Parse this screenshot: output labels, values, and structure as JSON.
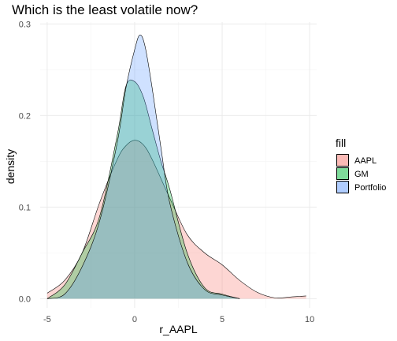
{
  "chart_data": {
    "type": "area",
    "title": "Which is the least volatile now?",
    "xlabel": "r_AAPL",
    "ylabel": "density",
    "xlim": [
      -5.4,
      10.4
    ],
    "ylim": [
      -0.01,
      0.302
    ],
    "x_ticks": [
      -5,
      0,
      5,
      10
    ],
    "y_ticks": [
      0.0,
      0.1,
      0.2,
      0.3
    ],
    "x_tick_labels": [
      "-5",
      "0",
      "5",
      "10"
    ],
    "y_tick_labels": [
      "0.0",
      "0.1",
      "0.2",
      "0.3"
    ],
    "grid": true,
    "legend": {
      "title": "fill",
      "position": "right"
    },
    "series": [
      {
        "name": "AAPL",
        "color": "#F8766D",
        "x": [
          -5.0,
          -4.0,
          -3.0,
          -2.0,
          -1.0,
          -0.5,
          0.0,
          0.5,
          1.0,
          2.0,
          3.0,
          4.0,
          5.0,
          6.0,
          7.0,
          8.0,
          9.0,
          9.8
        ],
        "y": [
          0.006,
          0.02,
          0.05,
          0.105,
          0.152,
          0.167,
          0.173,
          0.168,
          0.152,
          0.11,
          0.07,
          0.05,
          0.037,
          0.02,
          0.007,
          0.001,
          0.002,
          0.003
        ]
      },
      {
        "name": "GM",
        "color": "#00BA38",
        "x": [
          -5.0,
          -4.0,
          -3.0,
          -2.0,
          -1.0,
          -0.5,
          0.0,
          0.5,
          1.0,
          1.5,
          2.0,
          3.0,
          4.0,
          5.0,
          6.0
        ],
        "y": [
          0.0,
          0.015,
          0.05,
          0.09,
          0.178,
          0.232,
          0.237,
          0.22,
          0.185,
          0.15,
          0.12,
          0.05,
          0.012,
          0.005,
          0.0
        ]
      },
      {
        "name": "Portfolio",
        "color": "#619CFF",
        "x": [
          -5.0,
          -4.0,
          -3.0,
          -2.0,
          -1.0,
          -0.5,
          0.0,
          0.3,
          0.6,
          1.0,
          1.5,
          2.0,
          3.0,
          4.0,
          5.0,
          6.0
        ],
        "y": [
          0.0,
          0.005,
          0.035,
          0.085,
          0.17,
          0.23,
          0.272,
          0.288,
          0.275,
          0.23,
          0.165,
          0.105,
          0.04,
          0.01,
          0.004,
          0.0
        ]
      }
    ]
  }
}
